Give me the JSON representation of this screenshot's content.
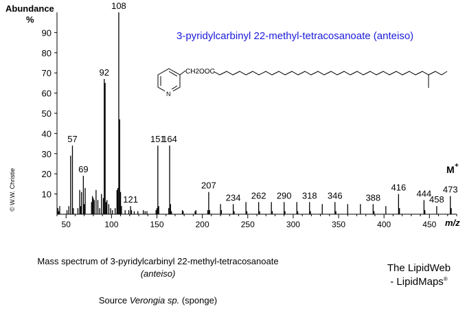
{
  "chart_data": {
    "type": "bar",
    "title": "3-pyridylcarbinyl 22-methyl-tetracosanoate (anteiso)",
    "ylabel": "Abundance",
    "ylabel_unit": "%",
    "xlabel": "m/z",
    "xlim": [
      40,
      480
    ],
    "ylim": [
      0,
      100
    ],
    "x_ticks": [
      50,
      100,
      150,
      200,
      250,
      300,
      350,
      400,
      450
    ],
    "y_ticks": [
      10,
      20,
      30,
      40,
      50,
      60,
      70,
      80,
      90
    ],
    "peaks": [
      {
        "mz": 41,
        "abundance": 3
      },
      {
        "mz": 42,
        "abundance": 1.5
      },
      {
        "mz": 43,
        "abundance": 4
      },
      {
        "mz": 51,
        "abundance": 2
      },
      {
        "mz": 53,
        "abundance": 4
      },
      {
        "mz": 55,
        "abundance": 29
      },
      {
        "mz": 57,
        "abundance": 34
      },
      {
        "mz": 58,
        "abundance": 3
      },
      {
        "mz": 63,
        "abundance": 3
      },
      {
        "mz": 65,
        "abundance": 12
      },
      {
        "mz": 66,
        "abundance": 4
      },
      {
        "mz": 67,
        "abundance": 11
      },
      {
        "mz": 69,
        "abundance": 19
      },
      {
        "mz": 70,
        "abundance": 5
      },
      {
        "mz": 71,
        "abundance": 13
      },
      {
        "mz": 78,
        "abundance": 6
      },
      {
        "mz": 79,
        "abundance": 9
      },
      {
        "mz": 80,
        "abundance": 8
      },
      {
        "mz": 81,
        "abundance": 7
      },
      {
        "mz": 83,
        "abundance": 12
      },
      {
        "mz": 85,
        "abundance": 7
      },
      {
        "mz": 87,
        "abundance": 3
      },
      {
        "mz": 89,
        "abundance": 10
      },
      {
        "mz": 91,
        "abundance": 8
      },
      {
        "mz": 92,
        "abundance": 67
      },
      {
        "mz": 93,
        "abundance": 65
      },
      {
        "mz": 94,
        "abundance": 6
      },
      {
        "mz": 95,
        "abundance": 7
      },
      {
        "mz": 97,
        "abundance": 5
      },
      {
        "mz": 99,
        "abundance": 3
      },
      {
        "mz": 101,
        "abundance": 2
      },
      {
        "mz": 104,
        "abundance": 3
      },
      {
        "mz": 106,
        "abundance": 12
      },
      {
        "mz": 107,
        "abundance": 13
      },
      {
        "mz": 108,
        "abundance": 100
      },
      {
        "mz": 109,
        "abundance": 47
      },
      {
        "mz": 110,
        "abundance": 11
      },
      {
        "mz": 111,
        "abundance": 4
      },
      {
        "mz": 115,
        "abundance": 2
      },
      {
        "mz": 119,
        "abundance": 2
      },
      {
        "mz": 121,
        "abundance": 4
      },
      {
        "mz": 122,
        "abundance": 2
      },
      {
        "mz": 125,
        "abundance": 1.5
      },
      {
        "mz": 129,
        "abundance": 1.5
      },
      {
        "mz": 135,
        "abundance": 2
      },
      {
        "mz": 137,
        "abundance": 1.5
      },
      {
        "mz": 139,
        "abundance": 1.5
      },
      {
        "mz": 149,
        "abundance": 2
      },
      {
        "mz": 150,
        "abundance": 3
      },
      {
        "mz": 151,
        "abundance": 34
      },
      {
        "mz": 152,
        "abundance": 4
      },
      {
        "mz": 163,
        "abundance": 3
      },
      {
        "mz": 164,
        "abundance": 34
      },
      {
        "mz": 165,
        "abundance": 5
      },
      {
        "mz": 166,
        "abundance": 1.5
      },
      {
        "mz": 178,
        "abundance": 2
      },
      {
        "mz": 179,
        "abundance": 1.5
      },
      {
        "mz": 192,
        "abundance": 1.5
      },
      {
        "mz": 193,
        "abundance": 2
      },
      {
        "mz": 206,
        "abundance": 2
      },
      {
        "mz": 207,
        "abundance": 11
      },
      {
        "mz": 208,
        "abundance": 2
      },
      {
        "mz": 220,
        "abundance": 5
      },
      {
        "mz": 221,
        "abundance": 2
      },
      {
        "mz": 234,
        "abundance": 5
      },
      {
        "mz": 235,
        "abundance": 1.5
      },
      {
        "mz": 248,
        "abundance": 6
      },
      {
        "mz": 249,
        "abundance": 1.5
      },
      {
        "mz": 262,
        "abundance": 6
      },
      {
        "mz": 263,
        "abundance": 1.5
      },
      {
        "mz": 276,
        "abundance": 6
      },
      {
        "mz": 277,
        "abundance": 1.5
      },
      {
        "mz": 290,
        "abundance": 6
      },
      {
        "mz": 291,
        "abundance": 1.5
      },
      {
        "mz": 304,
        "abundance": 6
      },
      {
        "mz": 305,
        "abundance": 1.5
      },
      {
        "mz": 318,
        "abundance": 6
      },
      {
        "mz": 319,
        "abundance": 1.5
      },
      {
        "mz": 332,
        "abundance": 5
      },
      {
        "mz": 346,
        "abundance": 6
      },
      {
        "mz": 347,
        "abundance": 1.5
      },
      {
        "mz": 360,
        "abundance": 5
      },
      {
        "mz": 374,
        "abundance": 5
      },
      {
        "mz": 388,
        "abundance": 5
      },
      {
        "mz": 389,
        "abundance": 1.5
      },
      {
        "mz": 402,
        "abundance": 4
      },
      {
        "mz": 416,
        "abundance": 10
      },
      {
        "mz": 417,
        "abundance": 3
      },
      {
        "mz": 444,
        "abundance": 7
      },
      {
        "mz": 445,
        "abundance": 2
      },
      {
        "mz": 458,
        "abundance": 4
      },
      {
        "mz": 473,
        "abundance": 9
      },
      {
        "mz": 474,
        "abundance": 3
      }
    ],
    "peak_labels": [
      "57",
      "69",
      "92",
      "108",
      "121",
      "151",
      "164",
      "207",
      "234",
      "262",
      "290",
      "318",
      "346",
      "388",
      "416",
      "444",
      "458",
      "473"
    ],
    "molecular_ion_label": "M",
    "molecular_ion_superscript": "+",
    "structure_label": "CH2OOC",
    "structure_ring_atom": "N",
    "copyright": "© W.W. Christie",
    "title_color": "#1a1adc"
  },
  "caption": {
    "line1": "Mass spectrum of 3-pyridylcarbinyl 22-methyl-tetracosanoate",
    "line2": "(anteiso)",
    "source_prefix": "Source ",
    "source_species": "Verongia sp.",
    "source_suffix": " (sponge)"
  },
  "branding": {
    "line1": "The LipidWeb",
    "line2": "- LipidMaps",
    "mark": "®"
  }
}
